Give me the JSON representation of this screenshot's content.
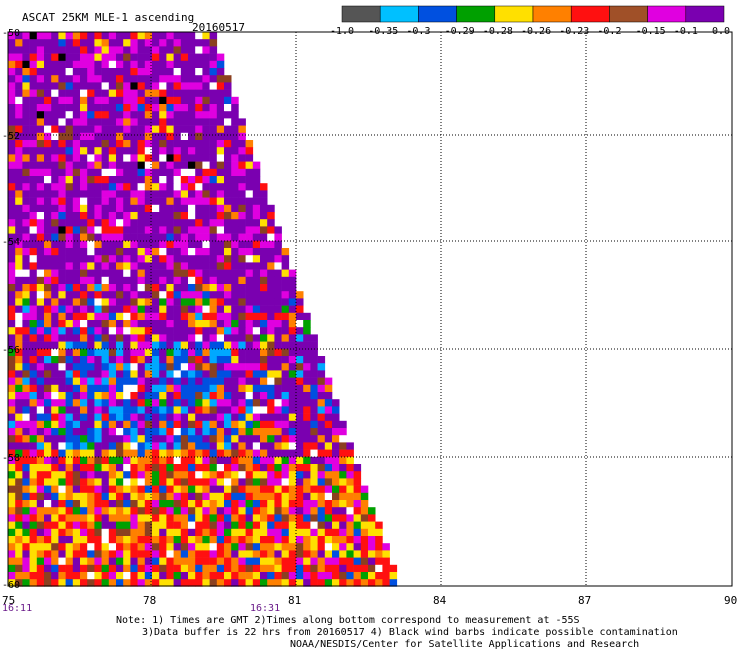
{
  "header": {
    "title": "ASCAT 25KM MLE-1 ascending",
    "date": "20160517"
  },
  "colorbar": {
    "colors": [
      "#555555",
      "#00c0ff",
      "#0050e0",
      "#00a000",
      "#ffe000",
      "#ff8000",
      "#ff1010",
      "#a05028",
      "#e000e0",
      "#7a00b0"
    ],
    "labels": [
      "-1.0",
      "-0.35",
      "-0.3",
      "-0.29",
      "-0.28",
      "-0.26",
      "-0.23",
      "-0.2",
      "-0.15",
      "-0.1",
      "0.0"
    ]
  },
  "axes": {
    "x_ticks": [
      "75",
      "78",
      "81",
      "84",
      "87",
      "90"
    ],
    "y_ticks": [
      "-50",
      "-52",
      "-54",
      "-56",
      "-58",
      "-60"
    ],
    "time_labels": [
      "16:11",
      "16:31"
    ]
  },
  "notes": [
    "Note: 1) Times are GMT 2)Times along bottom correspond to measurement at -55S",
    "3)Data buffer is 22 hrs from 20160517 4) Black wind barbs indicate possible contamination",
    "NOAA/NESDIS/Center for Satellite Applications and Research"
  ],
  "swath_palette_ids": [
    "magenta",
    "purple",
    "blue",
    "cyan",
    "green",
    "yellow",
    "orange",
    "red",
    "brown",
    "white",
    "black"
  ]
}
